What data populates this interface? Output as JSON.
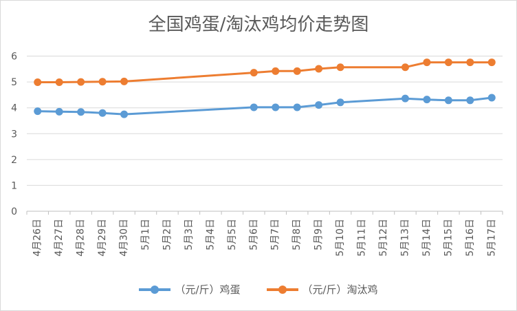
{
  "chart_data": {
    "type": "line",
    "title": "全国鸡蛋/淘汰鸡均价走势图",
    "xlabel": "",
    "ylabel": "",
    "ylim": [
      0,
      6.6
    ],
    "yticks": [
      0,
      1,
      2,
      3,
      4,
      5,
      6
    ],
    "grid": true,
    "legend_position": "bottom",
    "categories": [
      "4月26日",
      "4月27日",
      "4月28日",
      "4月29日",
      "4月30日",
      "5月1日",
      "5月2日",
      "5月3日",
      "5月4日",
      "5月5日",
      "5月6日",
      "5月7日",
      "5月8日",
      "5月9日",
      "5月10日",
      "5月11日",
      "5月12日",
      "5月13日",
      "5月14日",
      "5月15日",
      "5月16日",
      "5月17日"
    ],
    "series": [
      {
        "name": "（元/斤）鸡蛋",
        "color": "#5b9bd5",
        "values": [
          3.87,
          3.85,
          3.84,
          3.8,
          3.75,
          null,
          null,
          null,
          null,
          null,
          4.02,
          4.02,
          4.02,
          4.11,
          4.21,
          null,
          null,
          4.36,
          4.32,
          4.29,
          4.29,
          4.39
        ]
      },
      {
        "name": "（元/斤）淘汰鸡",
        "color": "#ed7d31",
        "values": [
          4.99,
          4.99,
          5.0,
          5.01,
          5.02,
          null,
          null,
          null,
          null,
          null,
          5.36,
          5.42,
          5.42,
          5.51,
          5.57,
          null,
          null,
          5.57,
          5.76,
          5.76,
          5.76,
          5.76
        ]
      }
    ]
  }
}
